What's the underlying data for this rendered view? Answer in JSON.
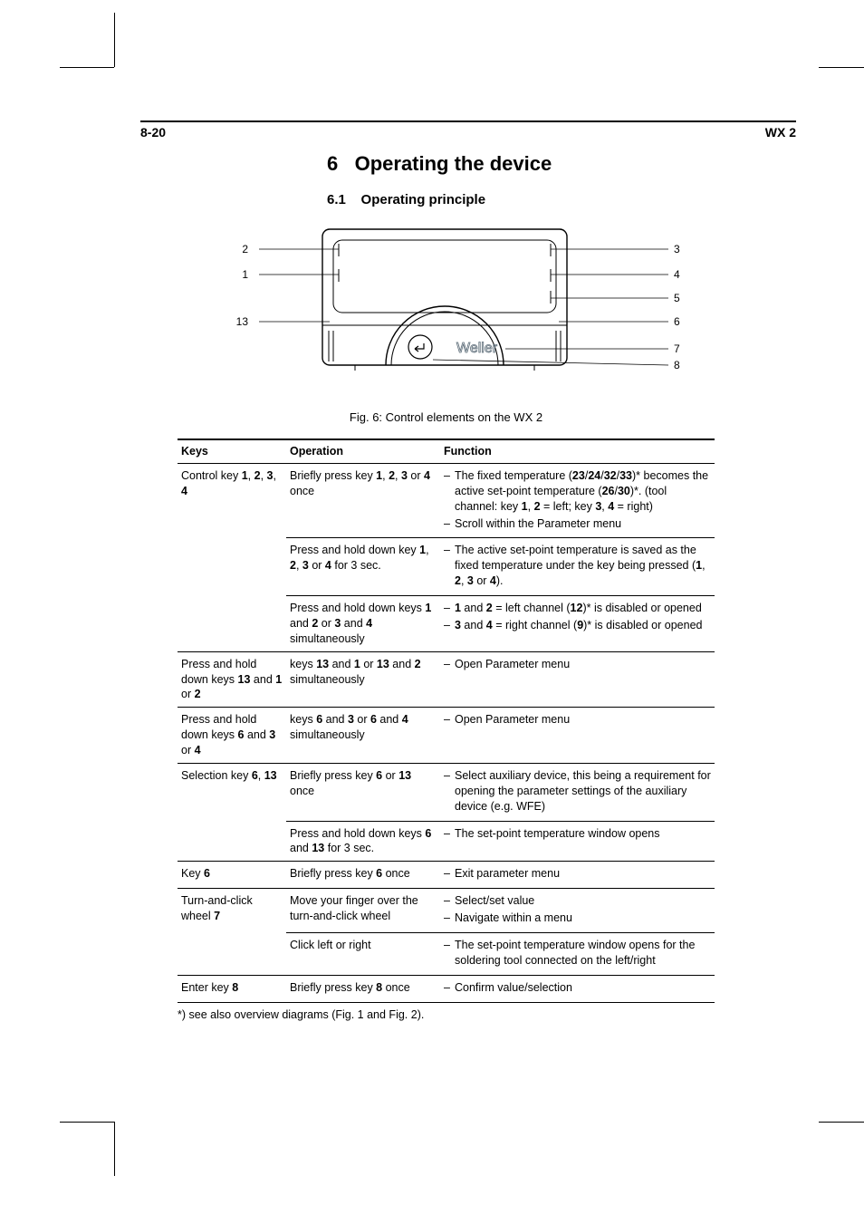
{
  "page_header": {
    "left": "8-20",
    "right": "WX 2"
  },
  "section": {
    "number": "6",
    "title": "Operating the device",
    "sub_number": "6.1",
    "sub_title": "Operating principle"
  },
  "figure": {
    "brand": "Weller",
    "caption": "Fig. 6: Control elements on the WX 2",
    "labels_left": [
      "2",
      "1",
      "13"
    ],
    "labels_right": [
      "3",
      "4",
      "5",
      "6",
      "7",
      "8"
    ],
    "stroke": "#000000",
    "fill": "#ffffff",
    "label_fontsize": 12
  },
  "table": {
    "headers": [
      "Keys",
      "Operation",
      "Function"
    ],
    "rows": [
      {
        "keys": "Control key <b>1</b>, <b>2</b>, <b>3</b>, <b>4</b>",
        "keys_rowspan": 3,
        "op": "Briefly press key <b>1</b>, <b>2</b>, <b>3</b> or <b>4</b> once",
        "fn": [
          "The fixed temperature (<b>23</b>/<b>24</b>/<b>32</b>/<b>33</b>)* becomes the active set-point temperature (<b>26</b>/<b>30</b>)*. (tool channel: key <b>1</b>, <b>2</b> = left; key <b>3</b>, <b>4</b> = right)",
          "Scroll within the Parameter menu"
        ]
      },
      {
        "op": "Press and hold down key <b>1</b>, <b>2</b>, <b>3</b> or <b>4</b> for 3 sec.",
        "fn": [
          "The active set-point temperature is saved as the fixed temperature under the key being pressed (<b>1</b>, <b>2</b>, <b>3</b> or <b>4</b>)."
        ]
      },
      {
        "op": "Press and hold down keys <b>1</b> and <b>2</b> or <b>3</b> and <b>4</b> simultaneously",
        "fn": [
          "<b>1</b> and <b>2</b> = left channel (<b>12</b>)* is disabled or opened",
          "<b>3</b> and <b>4</b> = right channel (<b>9</b>)* is disabled or opened"
        ]
      },
      {
        "keys": "Press and hold down keys <b>13</b> and <b>1</b> or <b>2</b>",
        "op": "keys <b>13</b> and <b>1</b> or <b>13</b> and <b>2</b> simultaneously",
        "fn": [
          "Open Parameter menu"
        ]
      },
      {
        "keys": "Press and hold down keys <b>6</b> and <b>3</b> or <b>4</b>",
        "op": "keys <b>6</b> and <b>3</b> or <b>6</b> and <b>4</b> simultaneously",
        "fn": [
          "Open Parameter menu"
        ]
      },
      {
        "keys": "Selection key <b>6</b>, <b>13</b>",
        "keys_rowspan": 2,
        "op": "Briefly press key <b>6</b> or <b>13</b> once",
        "fn": [
          "Select auxiliary device, this being a requirement for opening the parameter settings of the auxiliary device (e.g. WFE)"
        ]
      },
      {
        "op": "Press and hold down keys <b>6</b> and <b>13</b> for 3 sec.",
        "fn": [
          "The set-point temperature window opens"
        ]
      },
      {
        "keys": "Key <b>6</b>",
        "op": "Briefly press key <b>6</b> once",
        "fn": [
          "Exit parameter menu"
        ]
      },
      {
        "keys": "Turn-and-click wheel <b>7</b>",
        "keys_rowspan": 2,
        "op": "Move your finger over the turn-and-click wheel",
        "fn": [
          "Select/set value",
          "Navigate within a menu"
        ]
      },
      {
        "op": "Click left or right",
        "fn": [
          "The set-point temperature window opens for the soldering tool connected on the left/right"
        ]
      },
      {
        "keys": "Enter key <b>8</b>",
        "op": "Briefly press key <b>8</b> once",
        "fn": [
          "Confirm value/selection"
        ]
      }
    ]
  },
  "footnote": "*) see also overview diagrams (Fig. 1 and Fig. 2).",
  "colors": {
    "text": "#000000",
    "background": "#ffffff",
    "rule": "#000000"
  }
}
